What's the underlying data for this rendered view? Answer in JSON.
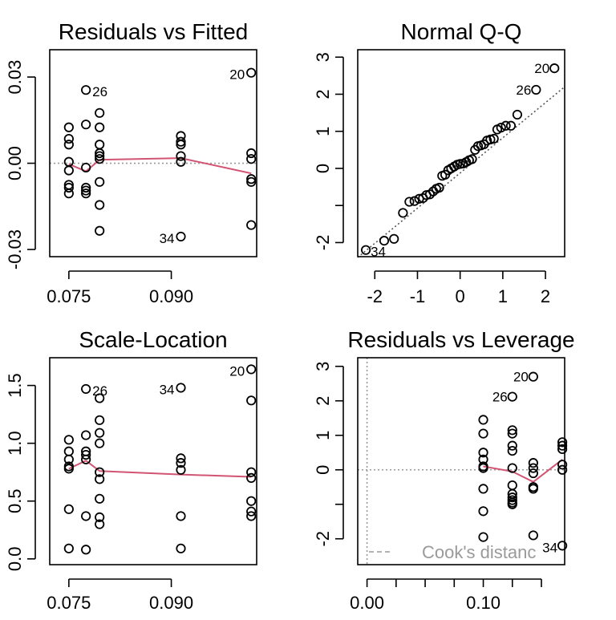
{
  "chart_data": [
    {
      "type": "scatter",
      "title": "Residuals vs Fitted",
      "xlabel": "",
      "ylabel": "",
      "xlim": [
        0.0722,
        0.1025
      ],
      "ylim": [
        -0.0325,
        0.0395
      ],
      "xticks": [
        0.075,
        0.09
      ],
      "xtick_labels": [
        "0.075",
        "0.090"
      ],
      "yticks": [
        -0.03,
        0.0,
        0.03
      ],
      "ytick_labels": [
        "-0.03",
        "0.00",
        "0.03"
      ],
      "points": [
        [
          0.075,
          0.0125
        ],
        [
          0.075,
          0.0085
        ],
        [
          0.075,
          0.0065
        ],
        [
          0.075,
          0.0005
        ],
        [
          0.075,
          -0.0025
        ],
        [
          0.075,
          -0.0075
        ],
        [
          0.075,
          -0.0085
        ],
        [
          0.075,
          -0.0105
        ],
        [
          0.0775,
          0.0255
        ],
        [
          0.0775,
          0.0135
        ],
        [
          0.0775,
          -0.0015
        ],
        [
          0.0775,
          -0.0085
        ],
        [
          0.0775,
          -0.0095
        ],
        [
          0.0775,
          -0.0105
        ],
        [
          0.0795,
          0.0175
        ],
        [
          0.0795,
          0.0125
        ],
        [
          0.0795,
          0.0065
        ],
        [
          0.0795,
          0.0035
        ],
        [
          0.0795,
          0.0025
        ],
        [
          0.0795,
          0.0015
        ],
        [
          0.0795,
          -0.0065
        ],
        [
          0.0795,
          -0.0145
        ],
        [
          0.0795,
          -0.0235
        ],
        [
          0.0914,
          0.0095
        ],
        [
          0.0914,
          0.0075
        ],
        [
          0.0914,
          0.0065
        ],
        [
          0.0914,
          0.0025
        ],
        [
          0.0914,
          0.0005
        ],
        [
          0.0914,
          -0.0255
        ],
        [
          0.1017,
          0.0315
        ],
        [
          0.1017,
          0.0035
        ],
        [
          0.1017,
          0.0015
        ],
        [
          0.1017,
          -0.0055
        ],
        [
          0.1017,
          -0.0065
        ],
        [
          0.1017,
          -0.0215
        ]
      ],
      "smooth_line": [
        [
          0.075,
          -0.0003
        ],
        [
          0.0775,
          -0.0028
        ],
        [
          0.0795,
          0.0012
        ],
        [
          0.0914,
          0.0018
        ],
        [
          0.1017,
          -0.0035
        ]
      ],
      "reference_line_y": 0,
      "point_labels": [
        {
          "text": "26",
          "at": [
            0.0775,
            0.0255
          ]
        },
        {
          "text": "20",
          "at": [
            0.1017,
            0.0315
          ]
        },
        {
          "text": "34",
          "at": [
            0.0914,
            -0.0255
          ]
        }
      ]
    },
    {
      "type": "scatter",
      "title": "Normal Q-Q",
      "xlabel": "",
      "ylabel": "",
      "xlim": [
        -2.4,
        2.45
      ],
      "ylim": [
        -2.38,
        3.2
      ],
      "xticks": [
        -2,
        -1,
        0,
        1,
        2
      ],
      "xtick_labels": [
        "-2",
        "-1",
        "0",
        "1",
        "2"
      ],
      "yticks": [
        -2,
        -1,
        0,
        1,
        2,
        3
      ],
      "ytick_labels": [
        "-2",
        "",
        "0",
        "1",
        "2",
        "3"
      ],
      "points": [
        [
          -2.21,
          -2.2
        ],
        [
          -1.78,
          -1.95
        ],
        [
          -1.55,
          -1.9
        ],
        [
          -1.34,
          -1.2
        ],
        [
          -1.19,
          -0.9
        ],
        [
          -1.07,
          -0.88
        ],
        [
          -0.96,
          -0.82
        ],
        [
          -0.87,
          -0.8
        ],
        [
          -0.79,
          -0.72
        ],
        [
          -0.71,
          -0.7
        ],
        [
          -0.63,
          -0.62
        ],
        [
          -0.56,
          -0.55
        ],
        [
          -0.49,
          -0.52
        ],
        [
          -0.42,
          -0.2
        ],
        [
          -0.35,
          -0.17
        ],
        [
          -0.28,
          -0.05
        ],
        [
          -0.21,
          0.0
        ],
        [
          -0.14,
          0.05
        ],
        [
          -0.07,
          0.1
        ],
        [
          0.0,
          0.12
        ],
        [
          0.07,
          0.13
        ],
        [
          0.14,
          0.17
        ],
        [
          0.21,
          0.22
        ],
        [
          0.28,
          0.25
        ],
        [
          0.35,
          0.5
        ],
        [
          0.42,
          0.6
        ],
        [
          0.49,
          0.62
        ],
        [
          0.56,
          0.65
        ],
        [
          0.63,
          0.75
        ],
        [
          0.71,
          0.78
        ],
        [
          0.79,
          0.8
        ],
        [
          0.87,
          1.05
        ],
        [
          0.96,
          1.1
        ],
        [
          1.07,
          1.15
        ],
        [
          1.19,
          1.15
        ],
        [
          1.34,
          1.45
        ],
        [
          1.78,
          2.12
        ],
        [
          2.21,
          2.7
        ]
      ],
      "reference_line": [
        [
          -2.4,
          -2.4
        ],
        [
          2.45,
          2.2
        ]
      ],
      "point_labels": [
        {
          "text": "20",
          "at": [
            2.21,
            2.7
          ]
        },
        {
          "text": "26",
          "at": [
            1.78,
            2.12
          ]
        },
        {
          "text": "34",
          "at": [
            -2.21,
            -2.2
          ]
        }
      ]
    },
    {
      "type": "scatter",
      "title": "Scale-Location",
      "xlabel": "",
      "ylabel": "",
      "xlim": [
        0.0722,
        0.1025
      ],
      "ylim": [
        -0.05,
        1.74
      ],
      "xticks": [
        0.075,
        0.09
      ],
      "xtick_labels": [
        "0.075",
        "0.090"
      ],
      "yticks": [
        0.0,
        0.5,
        1.0,
        1.5
      ],
      "ytick_labels": [
        "0.0",
        "0.5",
        "1.0",
        "1.5"
      ],
      "points": [
        [
          0.075,
          1.03
        ],
        [
          0.075,
          0.93
        ],
        [
          0.075,
          0.86
        ],
        [
          0.075,
          0.8
        ],
        [
          0.075,
          0.78
        ],
        [
          0.075,
          0.43
        ],
        [
          0.075,
          0.09
        ],
        [
          0.0775,
          1.47
        ],
        [
          0.0775,
          1.07
        ],
        [
          0.0775,
          0.93
        ],
        [
          0.0775,
          0.9
        ],
        [
          0.0775,
          0.86
        ],
        [
          0.0775,
          0.37
        ],
        [
          0.0775,
          0.08
        ],
        [
          0.0795,
          1.39
        ],
        [
          0.0795,
          1.2
        ],
        [
          0.0795,
          1.09
        ],
        [
          0.0795,
          1.0
        ],
        [
          0.0795,
          0.75
        ],
        [
          0.0795,
          0.69
        ],
        [
          0.0795,
          0.52
        ],
        [
          0.0795,
          0.36
        ],
        [
          0.0795,
          0.3
        ],
        [
          0.0914,
          1.48
        ],
        [
          0.0914,
          0.87
        ],
        [
          0.0914,
          0.83
        ],
        [
          0.0914,
          0.77
        ],
        [
          0.0914,
          0.37
        ],
        [
          0.0914,
          0.09
        ],
        [
          0.1017,
          1.64
        ],
        [
          0.1017,
          1.37
        ],
        [
          0.1017,
          0.75
        ],
        [
          0.1017,
          0.7
        ],
        [
          0.1017,
          0.5
        ],
        [
          0.1017,
          0.41
        ],
        [
          0.1017,
          0.37
        ]
      ],
      "smooth_line": [
        [
          0.075,
          0.78
        ],
        [
          0.0775,
          0.85
        ],
        [
          0.0795,
          0.76
        ],
        [
          0.0914,
          0.73
        ],
        [
          0.1017,
          0.71
        ]
      ],
      "point_labels": [
        {
          "text": "26",
          "at": [
            0.0775,
            1.47
          ]
        },
        {
          "text": "34",
          "at": [
            0.0914,
            1.48
          ]
        },
        {
          "text": "20",
          "at": [
            0.1017,
            1.64
          ]
        }
      ]
    },
    {
      "type": "scatter",
      "title": "Residuals vs Leverage",
      "xlabel": "",
      "ylabel": "",
      "xlim": [
        -0.008,
        0.17
      ],
      "ylim": [
        -2.75,
        3.25
      ],
      "xticks": [
        0.0,
        0.1
      ],
      "xtick_labels": [
        "0.00",
        "0.10"
      ],
      "minor_xticks": [
        0.025,
        0.05,
        0.075,
        0.125,
        0.15
      ],
      "yticks": [
        -2,
        -1,
        0,
        1,
        2,
        3
      ],
      "ytick_labels": [
        "-2",
        "",
        "0",
        "1",
        "2",
        "3"
      ],
      "points": [
        [
          0.1,
          1.45
        ],
        [
          0.1,
          1.05
        ],
        [
          0.1,
          0.5
        ],
        [
          0.1,
          0.3
        ],
        [
          0.1,
          0.1
        ],
        [
          0.1,
          0.05
        ],
        [
          0.1,
          -0.55
        ],
        [
          0.1,
          -1.2
        ],
        [
          0.1,
          -1.95
        ],
        [
          0.125,
          2.12
        ],
        [
          0.125,
          1.15
        ],
        [
          0.125,
          1.05
        ],
        [
          0.125,
          0.7
        ],
        [
          0.125,
          0.55
        ],
        [
          0.125,
          0.05
        ],
        [
          0.125,
          -0.45
        ],
        [
          0.125,
          -0.7
        ],
        [
          0.125,
          -0.8
        ],
        [
          0.125,
          -0.88
        ],
        [
          0.125,
          -0.95
        ],
        [
          0.125,
          -1.0
        ],
        [
          0.143,
          2.7
        ],
        [
          0.143,
          0.2
        ],
        [
          0.143,
          0.05
        ],
        [
          0.143,
          -0.1
        ],
        [
          0.143,
          -0.5
        ],
        [
          0.143,
          -0.55
        ],
        [
          0.143,
          -1.9
        ],
        [
          0.168,
          0.8
        ],
        [
          0.168,
          0.7
        ],
        [
          0.168,
          0.6
        ],
        [
          0.168,
          0.15
        ],
        [
          0.168,
          0.0
        ],
        [
          0.168,
          -2.2
        ]
      ],
      "smooth_line": [
        [
          0.1,
          0.1
        ],
        [
          0.125,
          -0.05
        ],
        [
          0.143,
          -0.35
        ],
        [
          0.168,
          0.3
        ]
      ],
      "reference_line_y": 0,
      "reference_line_x": 0,
      "point_labels": [
        {
          "text": "20",
          "at": [
            0.143,
            2.7
          ]
        },
        {
          "text": "26",
          "at": [
            0.125,
            2.12
          ]
        },
        {
          "text": "34",
          "at": [
            0.168,
            -2.2
          ]
        }
      ],
      "legend": {
        "text": "Cook's distanc",
        "position": "bottom"
      }
    }
  ],
  "colors": {
    "points": "#000000",
    "smooth": "#d25473",
    "reference": "#9a9a9a"
  }
}
